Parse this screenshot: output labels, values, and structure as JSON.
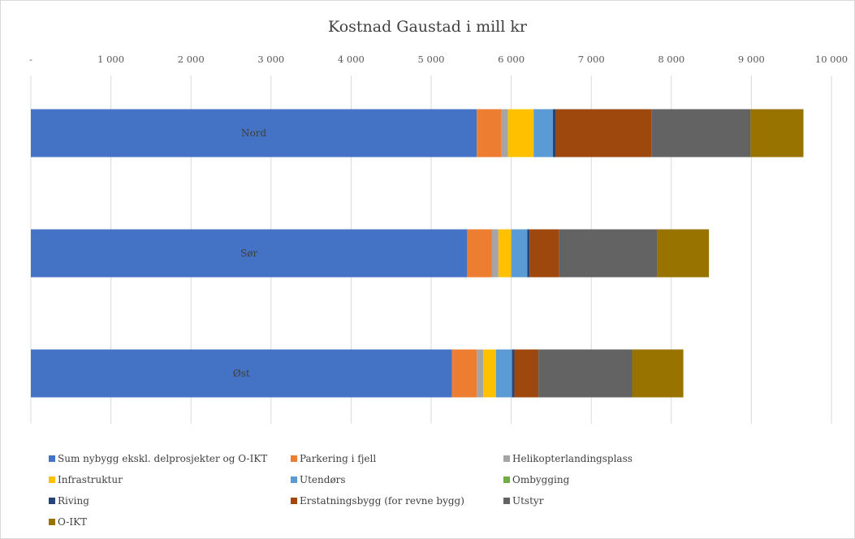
{
  "chart_data": {
    "type": "bar",
    "orientation": "horizontal",
    "stacked": true,
    "title": "Kostnad Gaustad i mill kr",
    "xlabel": "",
    "ylabel": "",
    "xlim": [
      0,
      10000
    ],
    "x_tick_labels": [
      "-",
      "1 000",
      "2 000",
      "3 000",
      "4 000",
      "5 000",
      "6 000",
      "7 000",
      "8 000",
      "9 000",
      "10 000"
    ],
    "grid": true,
    "legend_position": "bottom",
    "categories": [
      "Nord",
      "Sør",
      "Øst"
    ],
    "series": [
      {
        "name": "Sum nybygg ekskl. delprosjekter og O-IKT",
        "color": "#4472c4",
        "values": [
          5570,
          5450,
          5260
        ]
      },
      {
        "name": "Parkering i fjell",
        "color": "#ed7d31",
        "values": [
          310,
          310,
          310
        ]
      },
      {
        "name": "Helikopterlandingsplass",
        "color": "#a5a5a5",
        "values": [
          80,
          80,
          80
        ]
      },
      {
        "name": "Infrastruktur",
        "color": "#ffc000",
        "values": [
          320,
          160,
          160
        ]
      },
      {
        "name": "Utendørs",
        "color": "#5b9bd5",
        "values": [
          240,
          200,
          200
        ]
      },
      {
        "name": "Ombygging",
        "color": "#70ad47",
        "values": [
          0,
          0,
          0
        ]
      },
      {
        "name": "Riving",
        "color": "#264478",
        "values": [
          40,
          30,
          30
        ]
      },
      {
        "name": "Erstatningsbygg (for revne bygg)",
        "color": "#9e480e",
        "values": [
          1190,
          370,
          300
        ]
      },
      {
        "name": "Utstyr",
        "color": "#636363",
        "values": [
          1240,
          1220,
          1170
        ]
      },
      {
        "name": "O-IKT",
        "color": "#997300",
        "values": [
          660,
          650,
          640
        ]
      }
    ]
  }
}
